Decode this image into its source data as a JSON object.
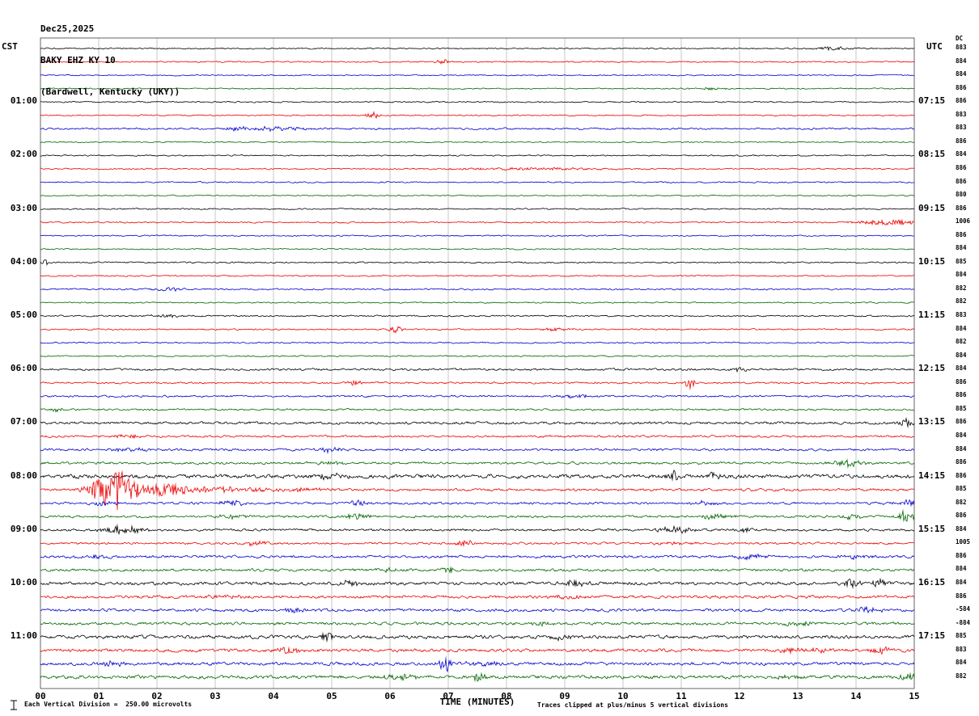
{
  "header": {
    "date": "Dec25,2025",
    "station": "BAKY EHZ KY 10",
    "location": "(Bardwell, Kentucky (UKY))"
  },
  "axes": {
    "left_header": "CST",
    "right_header": "UTC",
    "dc_header": "DC",
    "x_axis_label": "TIME (MINUTES)",
    "x_ticks": [
      "00",
      "01",
      "02",
      "03",
      "04",
      "05",
      "06",
      "07",
      "08",
      "09",
      "10",
      "11",
      "12",
      "13",
      "14",
      "15"
    ],
    "hour_rows": [
      4,
      8,
      12,
      16,
      20,
      24,
      28,
      32,
      36,
      40,
      44
    ],
    "left_times": [
      "01:00",
      "02:00",
      "03:00",
      "04:00",
      "05:00",
      "06:00",
      "07:00",
      "08:00",
      "09:00",
      "10:00",
      "11:00"
    ],
    "right_times": [
      "07:15",
      "08:15",
      "09:15",
      "10:15",
      "11:15",
      "12:15",
      "13:15",
      "14:15",
      "15:15",
      "16:15",
      "17:15"
    ]
  },
  "footer": {
    "scale_note": "Each Vertical Division =  250.00 microvolts",
    "clip_note": "Traces clipped at plus/minus 5 vertical divisions"
  },
  "chart_data": {
    "type": "line",
    "title": "BAKY EHZ KY 10",
    "x_label": "TIME (MINUTES)",
    "x_range_minutes": [
      0,
      15
    ],
    "row_duration_minutes": 15,
    "rows_count": 48,
    "microvolts_per_division": 250.0,
    "clip_divisions": 5,
    "grid": "vertical gridlines every 1 minute",
    "trace_color_cycle": {
      "black": "#000000",
      "red": "#ee0000",
      "blue": "#0000cc",
      "green": "#006600"
    },
    "rows": [
      {
        "color": "black",
        "dc": 883,
        "noise": 0.5,
        "events": [
          [
            13.6,
            0.3,
            2.5
          ]
        ]
      },
      {
        "color": "red",
        "dc": 884,
        "noise": 0.5,
        "events": [
          [
            6.9,
            0.1,
            3
          ]
        ]
      },
      {
        "color": "blue",
        "dc": 884,
        "noise": 0.45,
        "events": []
      },
      {
        "color": "green",
        "dc": 886,
        "noise": 0.45,
        "events": [
          [
            11.5,
            0.3,
            1.5
          ]
        ]
      },
      {
        "color": "black",
        "dc": 886,
        "noise": 0.5,
        "events": []
      },
      {
        "color": "red",
        "dc": 883,
        "noise": 0.5,
        "events": [
          [
            5.7,
            0.12,
            4
          ]
        ]
      },
      {
        "color": "blue",
        "dc": 883,
        "noise": 0.7,
        "events": [
          [
            3.4,
            0.2,
            3
          ],
          [
            4.1,
            0.5,
            2.5
          ]
        ]
      },
      {
        "color": "green",
        "dc": 886,
        "noise": 0.45,
        "events": []
      },
      {
        "color": "black",
        "dc": 884,
        "noise": 0.5,
        "events": []
      },
      {
        "color": "red",
        "dc": 886,
        "noise": 0.55,
        "events": [
          [
            8.5,
            1.5,
            1.2
          ]
        ]
      },
      {
        "color": "blue",
        "dc": 886,
        "noise": 0.5,
        "events": []
      },
      {
        "color": "green",
        "dc": 880,
        "noise": 0.45,
        "events": []
      },
      {
        "color": "black",
        "dc": 886,
        "noise": 0.5,
        "events": []
      },
      {
        "color": "red",
        "dc": 1006,
        "noise": 0.55,
        "events": [
          [
            14.6,
            0.5,
            3.5
          ]
        ]
      },
      {
        "color": "blue",
        "dc": 886,
        "noise": 0.5,
        "events": []
      },
      {
        "color": "green",
        "dc": 884,
        "noise": 0.45,
        "events": []
      },
      {
        "color": "black",
        "dc": 885,
        "noise": 0.55,
        "events": [
          [
            0.08,
            0.05,
            5
          ]
        ]
      },
      {
        "color": "red",
        "dc": 884,
        "noise": 0.5,
        "events": []
      },
      {
        "color": "blue",
        "dc": 882,
        "noise": 0.6,
        "events": [
          [
            2.2,
            0.25,
            2.5
          ]
        ]
      },
      {
        "color": "green",
        "dc": 882,
        "noise": 0.5,
        "events": []
      },
      {
        "color": "black",
        "dc": 883,
        "noise": 0.6,
        "events": [
          [
            2.2,
            0.3,
            2
          ]
        ]
      },
      {
        "color": "red",
        "dc": 884,
        "noise": 0.55,
        "events": [
          [
            6.1,
            0.1,
            5
          ],
          [
            8.8,
            0.3,
            1.5
          ]
        ]
      },
      {
        "color": "blue",
        "dc": 882,
        "noise": 0.55,
        "events": []
      },
      {
        "color": "green",
        "dc": 884,
        "noise": 0.5,
        "events": []
      },
      {
        "color": "black",
        "dc": 884,
        "noise": 0.8,
        "events": [
          [
            12.0,
            0.15,
            2.5
          ]
        ]
      },
      {
        "color": "red",
        "dc": 886,
        "noise": 0.7,
        "events": [
          [
            5.4,
            0.15,
            3
          ],
          [
            11.15,
            0.08,
            7
          ]
        ]
      },
      {
        "color": "blue",
        "dc": 886,
        "noise": 0.7,
        "events": [
          [
            9.2,
            0.4,
            1.5
          ]
        ]
      },
      {
        "color": "green",
        "dc": 885,
        "noise": 0.7,
        "events": [
          [
            0.3,
            0.1,
            3
          ]
        ]
      },
      {
        "color": "black",
        "dc": 886,
        "noise": 1.0,
        "events": [
          [
            14.85,
            0.1,
            6
          ]
        ]
      },
      {
        "color": "red",
        "dc": 884,
        "noise": 0.8,
        "events": [
          [
            1.5,
            0.3,
            2
          ]
        ]
      },
      {
        "color": "blue",
        "dc": 884,
        "noise": 0.9,
        "events": [
          [
            1.5,
            0.3,
            2.5
          ],
          [
            5.0,
            0.2,
            3
          ]
        ]
      },
      {
        "color": "green",
        "dc": 886,
        "noise": 0.9,
        "events": [
          [
            5.0,
            0.3,
            2
          ],
          [
            13.85,
            0.25,
            5
          ]
        ]
      },
      {
        "color": "black",
        "dc": 886,
        "noise": 1.5,
        "events": [
          [
            5.0,
            0.3,
            3
          ],
          [
            10.85,
            0.1,
            9
          ],
          [
            11.5,
            0.15,
            4
          ]
        ]
      },
      {
        "color": "red",
        "dc": 885,
        "noise": 1.0,
        "events": [
          [
            1.25,
            0.35,
            26
          ],
          [
            2.1,
            0.5,
            7
          ],
          [
            3.2,
            0.8,
            3
          ],
          [
            4.5,
            0.4,
            2
          ]
        ]
      },
      {
        "color": "blue",
        "dc": 882,
        "noise": 0.9,
        "events": [
          [
            1.1,
            0.2,
            3
          ],
          [
            3.3,
            0.3,
            3
          ],
          [
            5.45,
            0.15,
            4
          ],
          [
            11.4,
            0.3,
            2.5
          ],
          [
            14.9,
            0.2,
            4
          ]
        ]
      },
      {
        "color": "green",
        "dc": 886,
        "noise": 0.9,
        "events": [
          [
            3.3,
            0.3,
            3
          ],
          [
            5.45,
            0.2,
            4
          ],
          [
            11.6,
            0.3,
            3
          ],
          [
            13.9,
            0.2,
            3
          ],
          [
            14.85,
            0.15,
            7
          ]
        ]
      },
      {
        "color": "black",
        "dc": 884,
        "noise": 0.9,
        "events": [
          [
            1.4,
            0.35,
            5
          ],
          [
            10.9,
            0.3,
            4
          ],
          [
            12.1,
            0.2,
            2.5
          ]
        ]
      },
      {
        "color": "red",
        "dc": 1005,
        "noise": 0.8,
        "events": [
          [
            3.7,
            0.15,
            4
          ],
          [
            7.3,
            0.2,
            3
          ],
          [
            10.8,
            0.4,
            1.5
          ]
        ]
      },
      {
        "color": "blue",
        "dc": 886,
        "noise": 1.0,
        "events": [
          [
            1.0,
            0.2,
            3
          ],
          [
            12.2,
            0.25,
            3
          ],
          [
            14.0,
            0.3,
            2
          ]
        ]
      },
      {
        "color": "green",
        "dc": 884,
        "noise": 1.0,
        "events": [
          [
            6.0,
            0.3,
            2
          ],
          [
            7.0,
            0.1,
            6
          ]
        ]
      },
      {
        "color": "black",
        "dc": 884,
        "noise": 1.2,
        "events": [
          [
            5.3,
            0.2,
            3
          ],
          [
            9.2,
            0.2,
            4
          ],
          [
            13.9,
            0.15,
            5
          ],
          [
            14.4,
            0.15,
            4
          ]
        ]
      },
      {
        "color": "red",
        "dc": 886,
        "noise": 1.1,
        "events": [
          [
            3.2,
            0.3,
            2
          ],
          [
            9.0,
            0.3,
            2
          ]
        ]
      },
      {
        "color": "blue",
        "dc": -584,
        "noise": 1.1,
        "events": [
          [
            4.4,
            0.2,
            2.5
          ],
          [
            14.2,
            0.2,
            3
          ]
        ]
      },
      {
        "color": "green",
        "dc": -884,
        "noise": 1.1,
        "events": [
          [
            8.6,
            0.2,
            3
          ],
          [
            13.0,
            0.3,
            2
          ]
        ]
      },
      {
        "color": "black",
        "dc": 885,
        "noise": 1.3,
        "events": [
          [
            4.9,
            0.15,
            5
          ],
          [
            8.9,
            0.2,
            3
          ]
        ]
      },
      {
        "color": "red",
        "dc": 883,
        "noise": 1.2,
        "events": [
          [
            4.3,
            0.2,
            4
          ],
          [
            12.9,
            0.25,
            3
          ],
          [
            13.3,
            0.2,
            3
          ],
          [
            14.4,
            0.2,
            4
          ]
        ]
      },
      {
        "color": "blue",
        "dc": 884,
        "noise": 1.2,
        "events": [
          [
            1.2,
            0.2,
            3
          ],
          [
            6.95,
            0.1,
            11
          ],
          [
            7.6,
            0.3,
            3
          ]
        ]
      },
      {
        "color": "green",
        "dc": 882,
        "noise": 1.3,
        "events": [
          [
            6.2,
            0.3,
            3
          ],
          [
            7.55,
            0.1,
            8
          ],
          [
            12.8,
            0.3,
            2
          ],
          [
            14.9,
            0.2,
            4
          ]
        ]
      }
    ]
  }
}
